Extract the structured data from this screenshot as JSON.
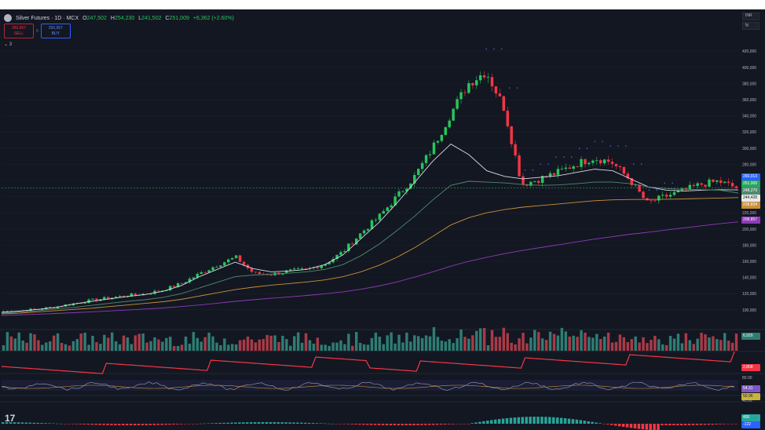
{
  "header": {
    "symbol": "Silver Futures · 1D · MCX",
    "open_label": "O",
    "open": "247,502",
    "high_label": "H",
    "high": "254,230",
    "low_label": "L",
    "low": "241,502",
    "close_label": "C",
    "close": "251,009",
    "change": "+6,362 (+2.60%)"
  },
  "trade": {
    "sell_price": "250,957",
    "sell_label": "SELL",
    "spread": "0",
    "buy_price": "250,957",
    "buy_label": "BUY"
  },
  "indicators_collapse": "⌄ 3",
  "toolbar": {
    "scale_label": "INR",
    "log_label": "lg"
  },
  "logo": "17",
  "price_tags": {
    "t1": "260,013",
    "t2": "251,009",
    "t3": "248,279",
    "t4": "244,428",
    "t5": "238,834",
    "t6": "208,857",
    "volume": "6,929",
    "pane2": "2,808",
    "rsi1": "54.31",
    "rsi2": "50.96",
    "macd1": "400",
    "macd2": "-122"
  },
  "colors": {
    "background": "#131722",
    "up": "#26c65b",
    "down": "#f23645",
    "ma_white": "#d8dbe6",
    "ma_green": "#4e8a6e",
    "ma_orange": "#c9913a",
    "ma_purple": "#8e3bb8",
    "psar": "#3f63ff",
    "volume_up": "#2e7d74",
    "volume_down": "#a83b47"
  },
  "chart_data": {
    "type": "candlestick",
    "title": "Silver Futures · 1D · MCX",
    "xlabel": "",
    "ylabel": "",
    "y_ticks": [
      "420,000",
      "400,000",
      "380,000",
      "360,000",
      "340,000",
      "320,000",
      "300,000",
      "280,000",
      "260,000",
      "240,000",
      "220,000",
      "200,000",
      "180,000",
      "160,000",
      "140,000",
      "120,000",
      "100,000"
    ],
    "ylim": [
      95000,
      425000
    ],
    "ohlc_anchor_closes": [
      98000,
      99000,
      101000,
      104000,
      108000,
      112000,
      115000,
      118000,
      120000,
      125000,
      133000,
      145000,
      156000,
      165000,
      145000,
      144000,
      148000,
      150000,
      157000,
      172000,
      195000,
      215000,
      240000,
      265000,
      300000,
      342000,
      380000,
      395000,
      350000,
      255000,
      262000,
      270000,
      280000,
      288000,
      283000,
      262000,
      232000,
      240000,
      247000,
      255000,
      259000,
      251009
    ],
    "series": [
      {
        "name": "",
        "values": [
          97000,
          98500,
          100500,
          103000,
          107000,
          110500,
          113500,
          116500,
          119000,
          123000,
          130000,
          141000,
          150000,
          159000,
          151000,
          147000,
          148000,
          150000,
          156000,
          168000,
          188000,
          208000,
          232000,
          258000,
          284000,
          305000,
          292000,
          272000,
          265000,
          262000,
          264000,
          266000,
          270000,
          274000,
          272000,
          262000,
          252000,
          248000,
          247000,
          248000,
          248500,
          248279
        ]
      },
      {
        "name": "",
        "values": [
          96000,
          97500,
          99000,
          101000,
          103000,
          105500,
          108000,
          110500,
          112500,
          115500,
          120000,
          127000,
          134000,
          141000,
          143000,
          144000,
          145500,
          147000,
          150000,
          156000,
          167000,
          181000,
          198000,
          216000,
          236000,
          254000,
          259000,
          258000,
          257000,
          255000,
          254000,
          254500,
          256000,
          258000,
          258000,
          256000,
          252000,
          250000,
          249000,
          248500,
          248000,
          244428
        ]
      },
      {
        "name": "",
        "values": [
          95000,
          96000,
          97500,
          99000,
          100500,
          102000,
          104000,
          106000,
          108000,
          110000,
          113000,
          117000,
          121000,
          125000,
          128000,
          130500,
          132500,
          134500,
          137000,
          141000,
          147000,
          155000,
          165000,
          177000,
          191000,
          205000,
          214000,
          220000,
          224000,
          227000,
          229000,
          231000,
          233000,
          235000,
          236000,
          236500,
          236500,
          236800,
          237200,
          237800,
          238300,
          238834
        ]
      },
      {
        "name": "",
        "values": [
          93000,
          93800,
          94600,
          95500,
          96500,
          97500,
          98600,
          99800,
          101000,
          102300,
          104000,
          106000,
          108200,
          110500,
          112500,
          114300,
          116000,
          117800,
          119800,
          122300,
          125500,
          129500,
          134500,
          140500,
          147000,
          154000,
          160000,
          165000,
          169500,
          173500,
          177000,
          180500,
          184000,
          187500,
          190500,
          193500,
          196000,
          198800,
          201500,
          204000,
          206500,
          208857
        ]
      }
    ],
    "volume_last": "6,929",
    "rsi_levels": [
      80,
      40
    ]
  }
}
